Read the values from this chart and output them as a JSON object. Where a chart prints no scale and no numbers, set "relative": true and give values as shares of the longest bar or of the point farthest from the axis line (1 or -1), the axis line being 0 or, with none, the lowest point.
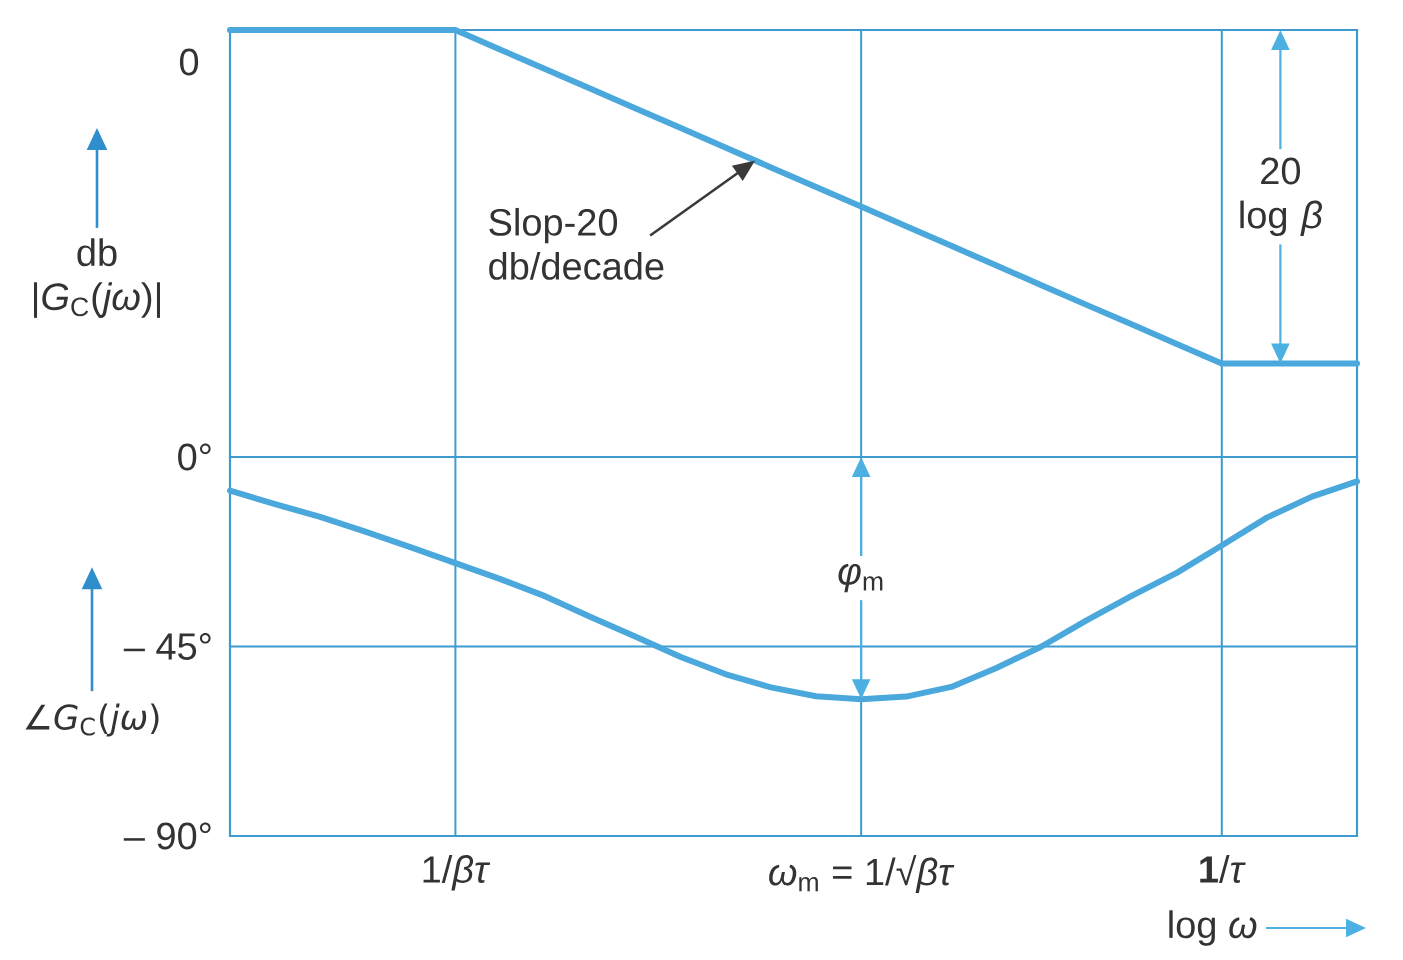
{
  "chart_data": [
    {
      "type": "line",
      "relative": true,
      "ylabel": "db |*G*$_{C}$(*jω*)|",
      "categories": [
        null,
        null,
        null,
        null,
        null,
        null,
        null,
        null,
        null,
        null,
        null,
        null,
        null,
        null,
        null,
        null,
        null,
        null,
        null,
        null,
        null,
        null,
        null,
        null,
        null,
        null
      ],
      "series": [
        {
          "color": "#4aa8dc",
          "values": [
            0,
            0,
            0,
            0,
            0,
            0,
            -0.059,
            -0.118,
            -0.176,
            -0.235,
            -0.294,
            -0.353,
            -0.412,
            -0.471,
            -0.529,
            -0.588,
            -0.647,
            -0.706,
            -0.765,
            -0.824,
            -0.882,
            -0.941,
            -1,
            -1,
            -1,
            -1
          ]
        }
      ],
      "grid": "x",
      "annotations": [
        "0",
        "Slop-20 db/decade",
        "20 log *β*"
      ]
    },
    {
      "type": "line",
      "ylabel": "∠*G*$_{C}$(*jω*)",
      "xlabel": "log *ω*",
      "categories": [
        null,
        null,
        null,
        null,
        null,
        "1/*βτ*",
        null,
        null,
        null,
        null,
        null,
        null,
        null,
        null,
        "*ω*$_{m}$ = 1/√*βτ*",
        null,
        null,
        null,
        null,
        null,
        null,
        null,
        "**1**/*τ*",
        null,
        null,
        null
      ],
      "series": [
        {
          "color": "#4aa8dc",
          "values": [
            -8,
            -11.2,
            -14.2,
            -17.7,
            -21.4,
            -25.2,
            -29,
            -33.1,
            -38,
            -42.7,
            -47.5,
            -51.6,
            -54.7,
            -56.8,
            -57.5,
            -56.9,
            -54.6,
            -50.1,
            -45,
            -38.8,
            -33,
            -27.5,
            -21,
            -14.4,
            -9.4,
            -5.8
          ]
        }
      ],
      "ylim": [
        -90,
        0
      ],
      "yticks": [
        {
          "value": 0,
          "label": "0°"
        },
        {
          "value": -45,
          "label": "– 45°"
        },
        {
          "value": -90,
          "label": "– 90°"
        }
      ],
      "grid": true,
      "annotations": [
        "*φ*$_{m}$"
      ]
    }
  ]
}
